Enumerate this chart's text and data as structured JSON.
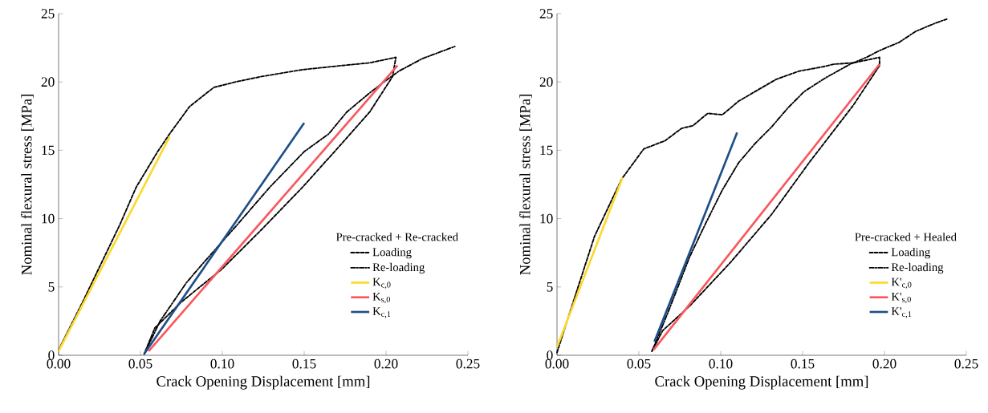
{
  "chart_data": [
    {
      "type": "line",
      "xlabel": "Crack Opening Displacement [mm]",
      "ylabel": "Nominal flexural stress [MPa]",
      "legend_title": "Pre-cracked + Re-cracked",
      "legend": "bottom right",
      "xlim": [
        0,
        0.25
      ],
      "ylim": [
        0,
        25
      ],
      "xticks": [
        {
          "value": 0,
          "label": "0.00"
        },
        {
          "value": 0.05,
          "label": "0.05"
        },
        {
          "value": 0.1,
          "label": "0.10"
        },
        {
          "value": 0.15,
          "label": "0.15"
        },
        {
          "value": 0.2,
          "label": "0.20"
        },
        {
          "value": 0.25,
          "label": "0.25"
        }
      ],
      "yticks": [
        0,
        5,
        10,
        15,
        20,
        25
      ],
      "series": [
        {
          "name": "Loading",
          "color": "#000000",
          "line_style": "dashed",
          "x": [
            0,
            0.0147,
            0.0376,
            0.0474,
            0.0605,
            0.0678,
            0.08,
            0.0948,
            0.108,
            0.124,
            0.149,
            0.173,
            0.19,
            0.206,
            0.204,
            0.19,
            0.173,
            0.149,
            0.124,
            0.0997,
            0.075,
            0.0588,
            0.0523
          ],
          "values": [
            0.4,
            3.9,
            9.6,
            12.3,
            14.9,
            16.2,
            18.2,
            19.6,
            20.0,
            20.4,
            20.9,
            21.2,
            21.4,
            21.8,
            20.4,
            17.8,
            15.5,
            12.3,
            9.2,
            6.3,
            3.9,
            2.0,
            0.1
          ]
        },
        {
          "name": "Re-loading",
          "color": "#000000",
          "line_style": "dashdot",
          "x": [
            0.0523,
            0.062,
            0.078,
            0.088,
            0.108,
            0.129,
            0.15,
            0.165,
            0.176,
            0.19,
            0.201,
            0.208,
            0.222,
            0.242
          ],
          "values": [
            0.1,
            2.5,
            5.3,
            6.7,
            9.4,
            12.3,
            14.9,
            16.2,
            17.8,
            19.2,
            20.2,
            20.8,
            21.7,
            22.6
          ]
        },
        {
          "name": "K$_{c,0}$",
          "color": "#fcd92c",
          "line_style": "solid",
          "x": [
            0,
            0.0678
          ],
          "values": [
            0.3,
            16.0
          ]
        },
        {
          "name": "K$_{s,0}$",
          "color": "#f8585e",
          "line_style": "solid",
          "x": [
            0.055,
            0.207
          ],
          "values": [
            0.3,
            21.2
          ]
        },
        {
          "name": "K$_{c,1}$",
          "color": "#1f4e88",
          "line_style": "solid",
          "x": [
            0.0523,
            0.15
          ],
          "values": [
            0.1,
            17.0
          ]
        }
      ]
    },
    {
      "type": "line",
      "xlabel": "Crack Opening Displacement [mm]",
      "ylabel": "Nominal flexural stress [MPa]",
      "legend_title": "Pre-cracked + Healed",
      "legend": "bottom right",
      "xlim": [
        0,
        0.25
      ],
      "ylim": [
        0,
        25
      ],
      "xticks": [
        {
          "value": 0,
          "label": "0.00"
        },
        {
          "value": 0.05,
          "label": "0.05"
        },
        {
          "value": 0.1,
          "label": "0.10"
        },
        {
          "value": 0.15,
          "label": "0.15"
        },
        {
          "value": 0.2,
          "label": "0.20"
        },
        {
          "value": 0.25,
          "label": "0.25"
        }
      ],
      "yticks": [
        0,
        5,
        10,
        15,
        20,
        25
      ],
      "series": [
        {
          "name": "Loading",
          "color": "#000000",
          "line_style": "dashed",
          "x": [
            0,
            0.008,
            0.0229,
            0.0395,
            0.053,
            0.066,
            0.076,
            0.083,
            0.092,
            0.101,
            0.111,
            0.121,
            0.134,
            0.148,
            0.162,
            0.169,
            0.181,
            0.197,
            0.197,
            0.181,
            0.154,
            0.131,
            0.106,
            0.081,
            0.0645,
            0.058
          ],
          "values": [
            0.2,
            3.2,
            8.7,
            12.9,
            15.1,
            15.7,
            16.6,
            16.8,
            17.7,
            17.6,
            18.6,
            19.3,
            20.2,
            20.8,
            21.1,
            21.3,
            21.4,
            21.8,
            21.2,
            18.3,
            14.1,
            10.3,
            6.8,
            3.6,
            1.8,
            0.3
          ]
        },
        {
          "name": "Re-loading",
          "color": "#000000",
          "line_style": "dashdot",
          "x": [
            0.058,
            0.068,
            0.081,
            0.091,
            0.101,
            0.111,
            0.121,
            0.131,
            0.141,
            0.151,
            0.164,
            0.179,
            0.189,
            0.197,
            0.209,
            0.219,
            0.231,
            0.238
          ],
          "values": [
            0.3,
            3.2,
            7.2,
            9.7,
            12.1,
            14.1,
            15.5,
            16.7,
            18.1,
            19.3,
            20.3,
            21.3,
            21.8,
            22.3,
            22.9,
            23.7,
            24.3,
            24.6
          ]
        },
        {
          "name": "K'$_{c,0}$",
          "color": "#fcd92c",
          "line_style": "solid",
          "x": [
            0,
            0.04
          ],
          "values": [
            0.6,
            13.0
          ]
        },
        {
          "name": "K'$_{s,0}$",
          "color": "#f8585e",
          "line_style": "solid",
          "x": [
            0.059,
            0.197
          ],
          "values": [
            0.4,
            21.3
          ]
        },
        {
          "name": "K'$_{c,1}$",
          "color": "#1f4e88",
          "line_style": "solid",
          "x": [
            0.0595,
            0.11
          ],
          "values": [
            1.0,
            16.3
          ]
        }
      ]
    }
  ]
}
